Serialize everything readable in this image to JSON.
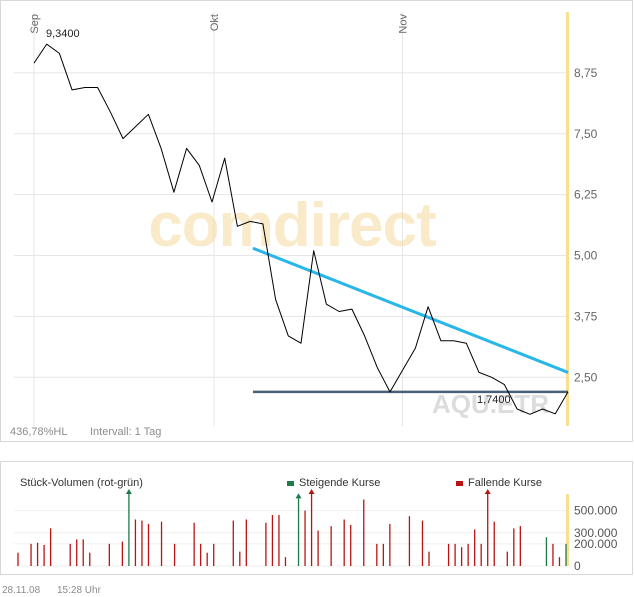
{
  "chart_data": [
    {
      "type": "line",
      "x_ticks": [
        "Sep",
        "Okt",
        "Nov"
      ],
      "y_ticks": [
        "8,75",
        "7,50",
        "6,25",
        "5,00",
        "3,75",
        "2,50"
      ],
      "ylim": [
        1.5,
        10.0
      ],
      "series": [
        {
          "values": [
            8.95,
            9.34,
            9.15,
            8.4,
            8.45,
            8.45,
            7.95,
            7.4,
            7.65,
            7.9,
            7.2,
            6.3,
            7.2,
            6.85,
            6.1,
            7.0,
            5.6,
            5.7,
            5.65,
            4.1,
            3.35,
            3.2,
            5.1,
            4.0,
            3.85,
            3.9,
            3.35,
            2.7,
            2.2,
            2.65,
            3.1,
            3.95,
            3.25,
            3.25,
            3.2,
            2.6,
            2.5,
            2.35,
            1.85,
            1.74,
            1.85,
            1.75,
            2.2
          ]
        }
      ],
      "trendlines": [
        {
          "color": "#29b6e8",
          "x0": 0.41,
          "y0": 5.15,
          "x1": 1.0,
          "y1": 2.6
        },
        {
          "color": "#4a6078",
          "x0": 0.41,
          "y0": 2.2,
          "x1": 1.0,
          "y1": 2.2
        }
      ],
      "annotations": {
        "max_label": "9,3400",
        "min_label": "1,7400"
      },
      "watermark": "comdirect",
      "symbol": "AQU.ETR",
      "footer_left": "436,78%HL",
      "interval": "Intervall: 1 Tag",
      "grid": true,
      "colors": {
        "price_line": "#000000",
        "today_marker": "#f8df91",
        "watermark": "#f5d9a0"
      }
    },
    {
      "type": "bar",
      "title": "Stück-Volumen (rot-grün)",
      "legend": [
        "Steigende Kurse",
        "Fallende Kurse"
      ],
      "y_ticks": [
        "500.000",
        "300.000",
        "200.000",
        "0"
      ],
      "ylim": [
        0,
        650000
      ],
      "values": [
        120000,
        0,
        200000,
        210000,
        190000,
        340000,
        0,
        0,
        200000,
        240000,
        240000,
        120000,
        0,
        0,
        200000,
        0,
        220000,
        650000,
        420000,
        410000,
        380000,
        0,
        400000,
        0,
        200000,
        0,
        0,
        390000,
        200000,
        120000,
        200000,
        0,
        0,
        410000,
        130000,
        420000,
        0,
        0,
        390000,
        460000,
        460000,
        80000,
        0,
        610000,
        500000,
        650000,
        320000,
        0,
        360000,
        0,
        420000,
        370000,
        0,
        600000,
        0,
        200000,
        200000,
        380000,
        0,
        0,
        450000,
        0,
        410000,
        130000,
        0,
        0,
        200000,
        200000,
        170000,
        200000,
        330000,
        200000,
        650000,
        400000,
        0,
        130000,
        340000,
        360000,
        0,
        0,
        0,
        260000,
        200000,
        80000,
        200000
      ],
      "rising": [
        false,
        false,
        false,
        false,
        false,
        false,
        false,
        false,
        false,
        false,
        false,
        false,
        false,
        false,
        false,
        false,
        false,
        true,
        false,
        false,
        false,
        false,
        false,
        false,
        false,
        false,
        false,
        false,
        false,
        false,
        false,
        false,
        false,
        false,
        false,
        false,
        false,
        false,
        false,
        false,
        false,
        false,
        false,
        true,
        false,
        false,
        false,
        false,
        false,
        false,
        false,
        false,
        false,
        false,
        false,
        false,
        false,
        false,
        false,
        false,
        false,
        false,
        false,
        false,
        false,
        false,
        false,
        false,
        false,
        false,
        false,
        false,
        false,
        false,
        false,
        false,
        false,
        false,
        false,
        false,
        false,
        true,
        false,
        false,
        true
      ],
      "arrows": [
        {
          "bar": 17,
          "color": "#1e7a4a"
        },
        {
          "bar": 43,
          "color": "#1e7a4a"
        },
        {
          "bar": 45,
          "color": "#b81414"
        },
        {
          "bar": 72,
          "color": "#b81414"
        }
      ],
      "colors": {
        "rising": "#1e7a4a",
        "falling": "#b81414"
      }
    }
  ],
  "footer": {
    "date": "28.11.08",
    "time": "15:28 Uhr"
  }
}
